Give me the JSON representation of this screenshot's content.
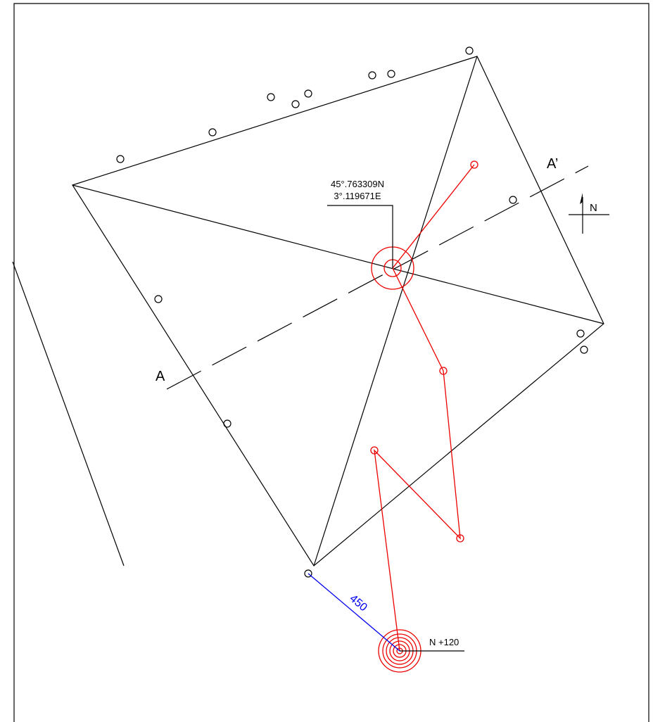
{
  "coordinates": {
    "latitude": "45°.763309N",
    "longitude": "3°.119671E"
  },
  "section": {
    "start": "A",
    "end": "A’"
  },
  "north_label": "N",
  "distance_label": "450",
  "level_label": "N +120"
}
